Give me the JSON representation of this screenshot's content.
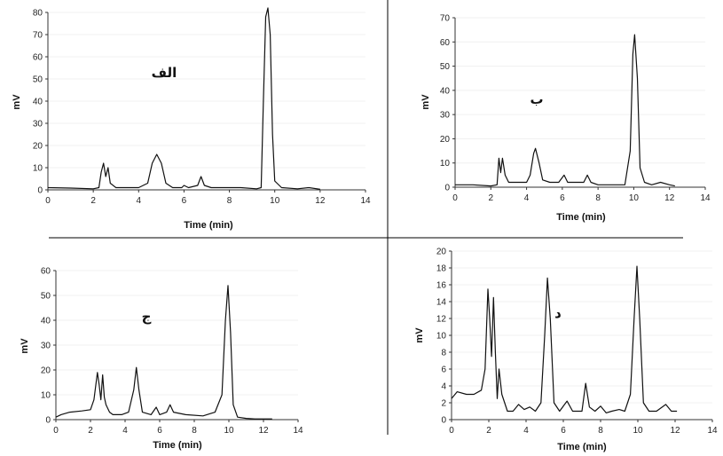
{
  "chart_data": [
    {
      "type": "line",
      "panel_label": "الف",
      "xlabel": "Time (min)",
      "ylabel": "mV",
      "xlim": [
        0,
        14
      ],
      "ylim": [
        0,
        80
      ],
      "x_ticks": [
        0,
        2,
        4,
        6,
        8,
        10,
        12,
        14
      ],
      "y_ticks": [
        0,
        10,
        20,
        30,
        40,
        50,
        60,
        70,
        80
      ],
      "series": [
        {
          "line_color": "#111111",
          "points": [
            [
              0,
              1
            ],
            [
              1,
              0.8
            ],
            [
              2,
              0.5
            ],
            [
              2.25,
              1
            ],
            [
              2.35,
              8
            ],
            [
              2.45,
              12
            ],
            [
              2.55,
              6
            ],
            [
              2.65,
              10
            ],
            [
              2.75,
              3
            ],
            [
              3,
              1
            ],
            [
              4,
              1
            ],
            [
              4.4,
              3
            ],
            [
              4.6,
              12
            ],
            [
              4.8,
              16
            ],
            [
              5,
              12
            ],
            [
              5.2,
              3
            ],
            [
              5.5,
              1
            ],
            [
              5.9,
              1
            ],
            [
              6,
              2
            ],
            [
              6.2,
              1
            ],
            [
              6.6,
              2
            ],
            [
              6.75,
              6
            ],
            [
              6.9,
              2
            ],
            [
              7.2,
              1
            ],
            [
              8.5,
              1
            ],
            [
              9.2,
              0.5
            ],
            [
              9.4,
              1
            ],
            [
              9.5,
              40
            ],
            [
              9.6,
              78
            ],
            [
              9.7,
              82
            ],
            [
              9.8,
              70
            ],
            [
              9.9,
              25
            ],
            [
              10,
              4
            ],
            [
              10.3,
              1
            ],
            [
              11,
              0.5
            ],
            [
              11.5,
              1
            ],
            [
              12,
              0.3
            ]
          ]
        }
      ]
    },
    {
      "type": "line",
      "panel_label": "ب",
      "xlabel": "Time (min)",
      "ylabel": "mV",
      "xlim": [
        0,
        14
      ],
      "ylim": [
        0,
        70
      ],
      "x_ticks": [
        0,
        2,
        4,
        6,
        8,
        10,
        12,
        14
      ],
      "y_ticks": [
        0,
        10,
        20,
        30,
        40,
        50,
        60,
        70
      ],
      "series": [
        {
          "line_color": "#111111",
          "points": [
            [
              0,
              1
            ],
            [
              1,
              1
            ],
            [
              2,
              0.5
            ],
            [
              2.35,
              1
            ],
            [
              2.45,
              12
            ],
            [
              2.55,
              6
            ],
            [
              2.65,
              12
            ],
            [
              2.8,
              5
            ],
            [
              3,
              2
            ],
            [
              4,
              2
            ],
            [
              4.2,
              5
            ],
            [
              4.4,
              14
            ],
            [
              4.5,
              16
            ],
            [
              4.7,
              10
            ],
            [
              4.9,
              3
            ],
            [
              5.3,
              2
            ],
            [
              5.8,
              2
            ],
            [
              6.1,
              5
            ],
            [
              6.3,
              2
            ],
            [
              6.8,
              2
            ],
            [
              7.2,
              2
            ],
            [
              7.4,
              5
            ],
            [
              7.6,
              2
            ],
            [
              8,
              1
            ],
            [
              9.5,
              1
            ],
            [
              9.8,
              15
            ],
            [
              9.95,
              55
            ],
            [
              10.05,
              63
            ],
            [
              10.2,
              45
            ],
            [
              10.35,
              8
            ],
            [
              10.6,
              2
            ],
            [
              11,
              1
            ],
            [
              11.5,
              2
            ],
            [
              12,
              1
            ],
            [
              12.3,
              0.5
            ]
          ]
        }
      ]
    },
    {
      "type": "line",
      "panel_label": "ج",
      "xlabel": "Time (min)",
      "ylabel": "mV",
      "xlim": [
        0,
        14
      ],
      "ylim": [
        0,
        60
      ],
      "x_ticks": [
        0,
        2,
        4,
        6,
        8,
        10,
        12,
        14
      ],
      "y_ticks": [
        0,
        10,
        20,
        30,
        40,
        50,
        60
      ],
      "series": [
        {
          "line_color": "#111111",
          "points": [
            [
              0,
              1
            ],
            [
              0.3,
              2
            ],
            [
              0.8,
              3
            ],
            [
              1.5,
              3.5
            ],
            [
              2,
              4
            ],
            [
              2.2,
              8
            ],
            [
              2.4,
              19
            ],
            [
              2.5,
              14
            ],
            [
              2.6,
              8
            ],
            [
              2.7,
              18
            ],
            [
              2.8,
              9
            ],
            [
              2.9,
              6
            ],
            [
              3.1,
              3
            ],
            [
              3.3,
              2
            ],
            [
              3.8,
              2
            ],
            [
              4.2,
              3
            ],
            [
              4.5,
              12
            ],
            [
              4.65,
              21
            ],
            [
              4.8,
              12
            ],
            [
              5,
              3
            ],
            [
              5.5,
              2
            ],
            [
              5.8,
              5
            ],
            [
              6,
              2
            ],
            [
              6.4,
              3
            ],
            [
              6.6,
              6
            ],
            [
              6.8,
              3
            ],
            [
              7.5,
              2
            ],
            [
              8.5,
              1.5
            ],
            [
              9.2,
              3
            ],
            [
              9.6,
              10
            ],
            [
              9.8,
              40
            ],
            [
              9.95,
              54
            ],
            [
              10.1,
              35
            ],
            [
              10.25,
              6
            ],
            [
              10.5,
              1
            ],
            [
              11,
              0.5
            ],
            [
              11.5,
              0.3
            ],
            [
              12.5,
              0.3
            ]
          ]
        }
      ]
    },
    {
      "type": "line",
      "panel_label": "د",
      "xlabel": "Time (min)",
      "ylabel": "mV",
      "xlim": [
        0,
        14
      ],
      "ylim": [
        0,
        20
      ],
      "x_ticks": [
        0,
        2,
        4,
        6,
        8,
        10,
        12,
        14
      ],
      "y_ticks": [
        0,
        2,
        4,
        6,
        8,
        10,
        12,
        14,
        16,
        18,
        20
      ],
      "series": [
        {
          "line_color": "#111111",
          "points": [
            [
              0,
              2.5
            ],
            [
              0.3,
              3.3
            ],
            [
              0.8,
              3
            ],
            [
              1.2,
              3
            ],
            [
              1.6,
              3.5
            ],
            [
              1.8,
              6
            ],
            [
              1.95,
              15.5
            ],
            [
              2.05,
              12
            ],
            [
              2.15,
              7.5
            ],
            [
              2.25,
              14.5
            ],
            [
              2.35,
              8
            ],
            [
              2.45,
              2.5
            ],
            [
              2.55,
              6
            ],
            [
              2.7,
              3
            ],
            [
              3,
              1
            ],
            [
              3.3,
              1
            ],
            [
              3.6,
              1.8
            ],
            [
              3.9,
              1.2
            ],
            [
              4.2,
              1.5
            ],
            [
              4.5,
              1
            ],
            [
              4.8,
              2
            ],
            [
              5,
              10
            ],
            [
              5.15,
              16.8
            ],
            [
              5.3,
              12
            ],
            [
              5.5,
              2
            ],
            [
              5.8,
              1
            ],
            [
              6.2,
              2.2
            ],
            [
              6.5,
              1
            ],
            [
              7,
              1
            ],
            [
              7.2,
              4.3
            ],
            [
              7.4,
              1.5
            ],
            [
              7.7,
              1
            ],
            [
              8,
              1.6
            ],
            [
              8.3,
              0.8
            ],
            [
              8.6,
              1
            ],
            [
              9,
              1.2
            ],
            [
              9.3,
              1
            ],
            [
              9.6,
              3
            ],
            [
              9.8,
              12
            ],
            [
              9.95,
              18.2
            ],
            [
              10.1,
              12
            ],
            [
              10.3,
              2
            ],
            [
              10.6,
              1
            ],
            [
              11,
              1
            ],
            [
              11.5,
              1.8
            ],
            [
              11.8,
              1
            ],
            [
              12.1,
              1
            ]
          ]
        }
      ]
    }
  ]
}
